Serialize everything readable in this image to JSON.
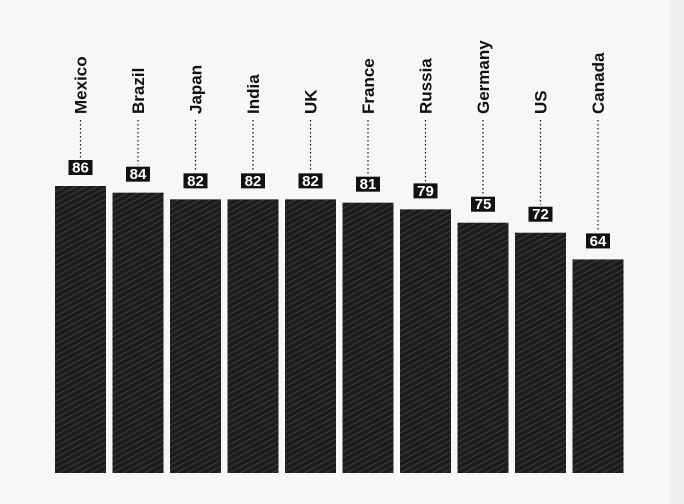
{
  "chart_data": {
    "type": "bar",
    "categories": [
      "Mexico",
      "Brazil",
      "Japan",
      "India",
      "UK",
      "France",
      "Russia",
      "Germany",
      "US",
      "Canada"
    ],
    "values": [
      86,
      84,
      82,
      82,
      82,
      81,
      79,
      75,
      72,
      64
    ],
    "title": "",
    "xlabel": "",
    "ylabel": "",
    "ylim": [
      0,
      86
    ],
    "grid": false,
    "legend": "none",
    "colors": {
      "bar": "#1c1c1c",
      "hatch": "#5a5a5a",
      "label_box": "#111111",
      "label_text": "#ffffff",
      "text": "#111111",
      "background": "#f7f7f7"
    }
  }
}
